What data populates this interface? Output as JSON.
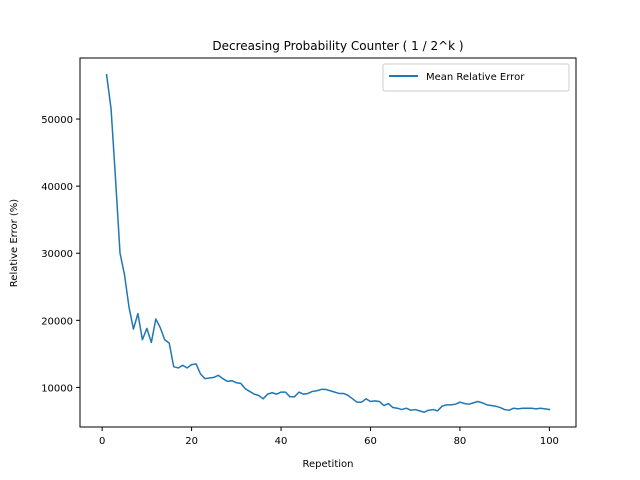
{
  "chart_data": {
    "type": "line",
    "title": "Decreasing Probability Counter ( 1 / 2^k )",
    "xlabel": "Repetition",
    "ylabel": "Relative Error (%)",
    "xlim": [
      -4.95,
      105.95
    ],
    "ylim": [
      4100,
      59100
    ],
    "xticks": [
      0,
      20,
      40,
      60,
      80,
      100
    ],
    "yticks": [
      10000,
      20000,
      30000,
      40000,
      50000
    ],
    "legend": "top-right",
    "grid": false,
    "series": [
      {
        "name": "Mean Relative Error",
        "color": "#1f77b4",
        "x": [
          1,
          2,
          3,
          4,
          5,
          6,
          7,
          8,
          9,
          10,
          11,
          12,
          13,
          14,
          15,
          16,
          17,
          18,
          19,
          20,
          21,
          22,
          23,
          24,
          25,
          26,
          27,
          28,
          29,
          30,
          31,
          32,
          33,
          34,
          35,
          36,
          37,
          38,
          39,
          40,
          41,
          42,
          43,
          44,
          45,
          46,
          47,
          48,
          49,
          50,
          51,
          52,
          53,
          54,
          55,
          56,
          57,
          58,
          59,
          60,
          61,
          62,
          63,
          64,
          65,
          66,
          67,
          68,
          69,
          70,
          71,
          72,
          73,
          74,
          75,
          76,
          77,
          78,
          79,
          80,
          81,
          82,
          83,
          84,
          85,
          86,
          87,
          88,
          89,
          90,
          91,
          92,
          93,
          94,
          95,
          96,
          97,
          98,
          99,
          100
        ],
        "y": [
          56600,
          51500,
          41000,
          30000,
          26800,
          22000,
          18700,
          21000,
          17100,
          18800,
          16700,
          20200,
          18900,
          17100,
          16600,
          13100,
          12900,
          13300,
          12900,
          13400,
          13500,
          12000,
          11300,
          11400,
          11500,
          11800,
          11300,
          10900,
          11000,
          10700,
          10600,
          9800,
          9400,
          9000,
          8800,
          8300,
          9000,
          9200,
          9000,
          9300,
          9300,
          8600,
          8600,
          9300,
          9000,
          9100,
          9400,
          9500,
          9700,
          9700,
          9500,
          9300,
          9100,
          9100,
          8800,
          8300,
          7800,
          7800,
          8300,
          7900,
          8000,
          7900,
          7300,
          7600,
          7000,
          6900,
          6700,
          6900,
          6600,
          6700,
          6500,
          6300,
          6600,
          6700,
          6500,
          7200,
          7400,
          7400,
          7500,
          7800,
          7600,
          7500,
          7700,
          7900,
          7700,
          7400,
          7300,
          7200,
          7000,
          6700,
          6600,
          6900,
          6800,
          6900,
          6900,
          6900,
          6800,
          6900,
          6800,
          6700
        ]
      }
    ]
  }
}
